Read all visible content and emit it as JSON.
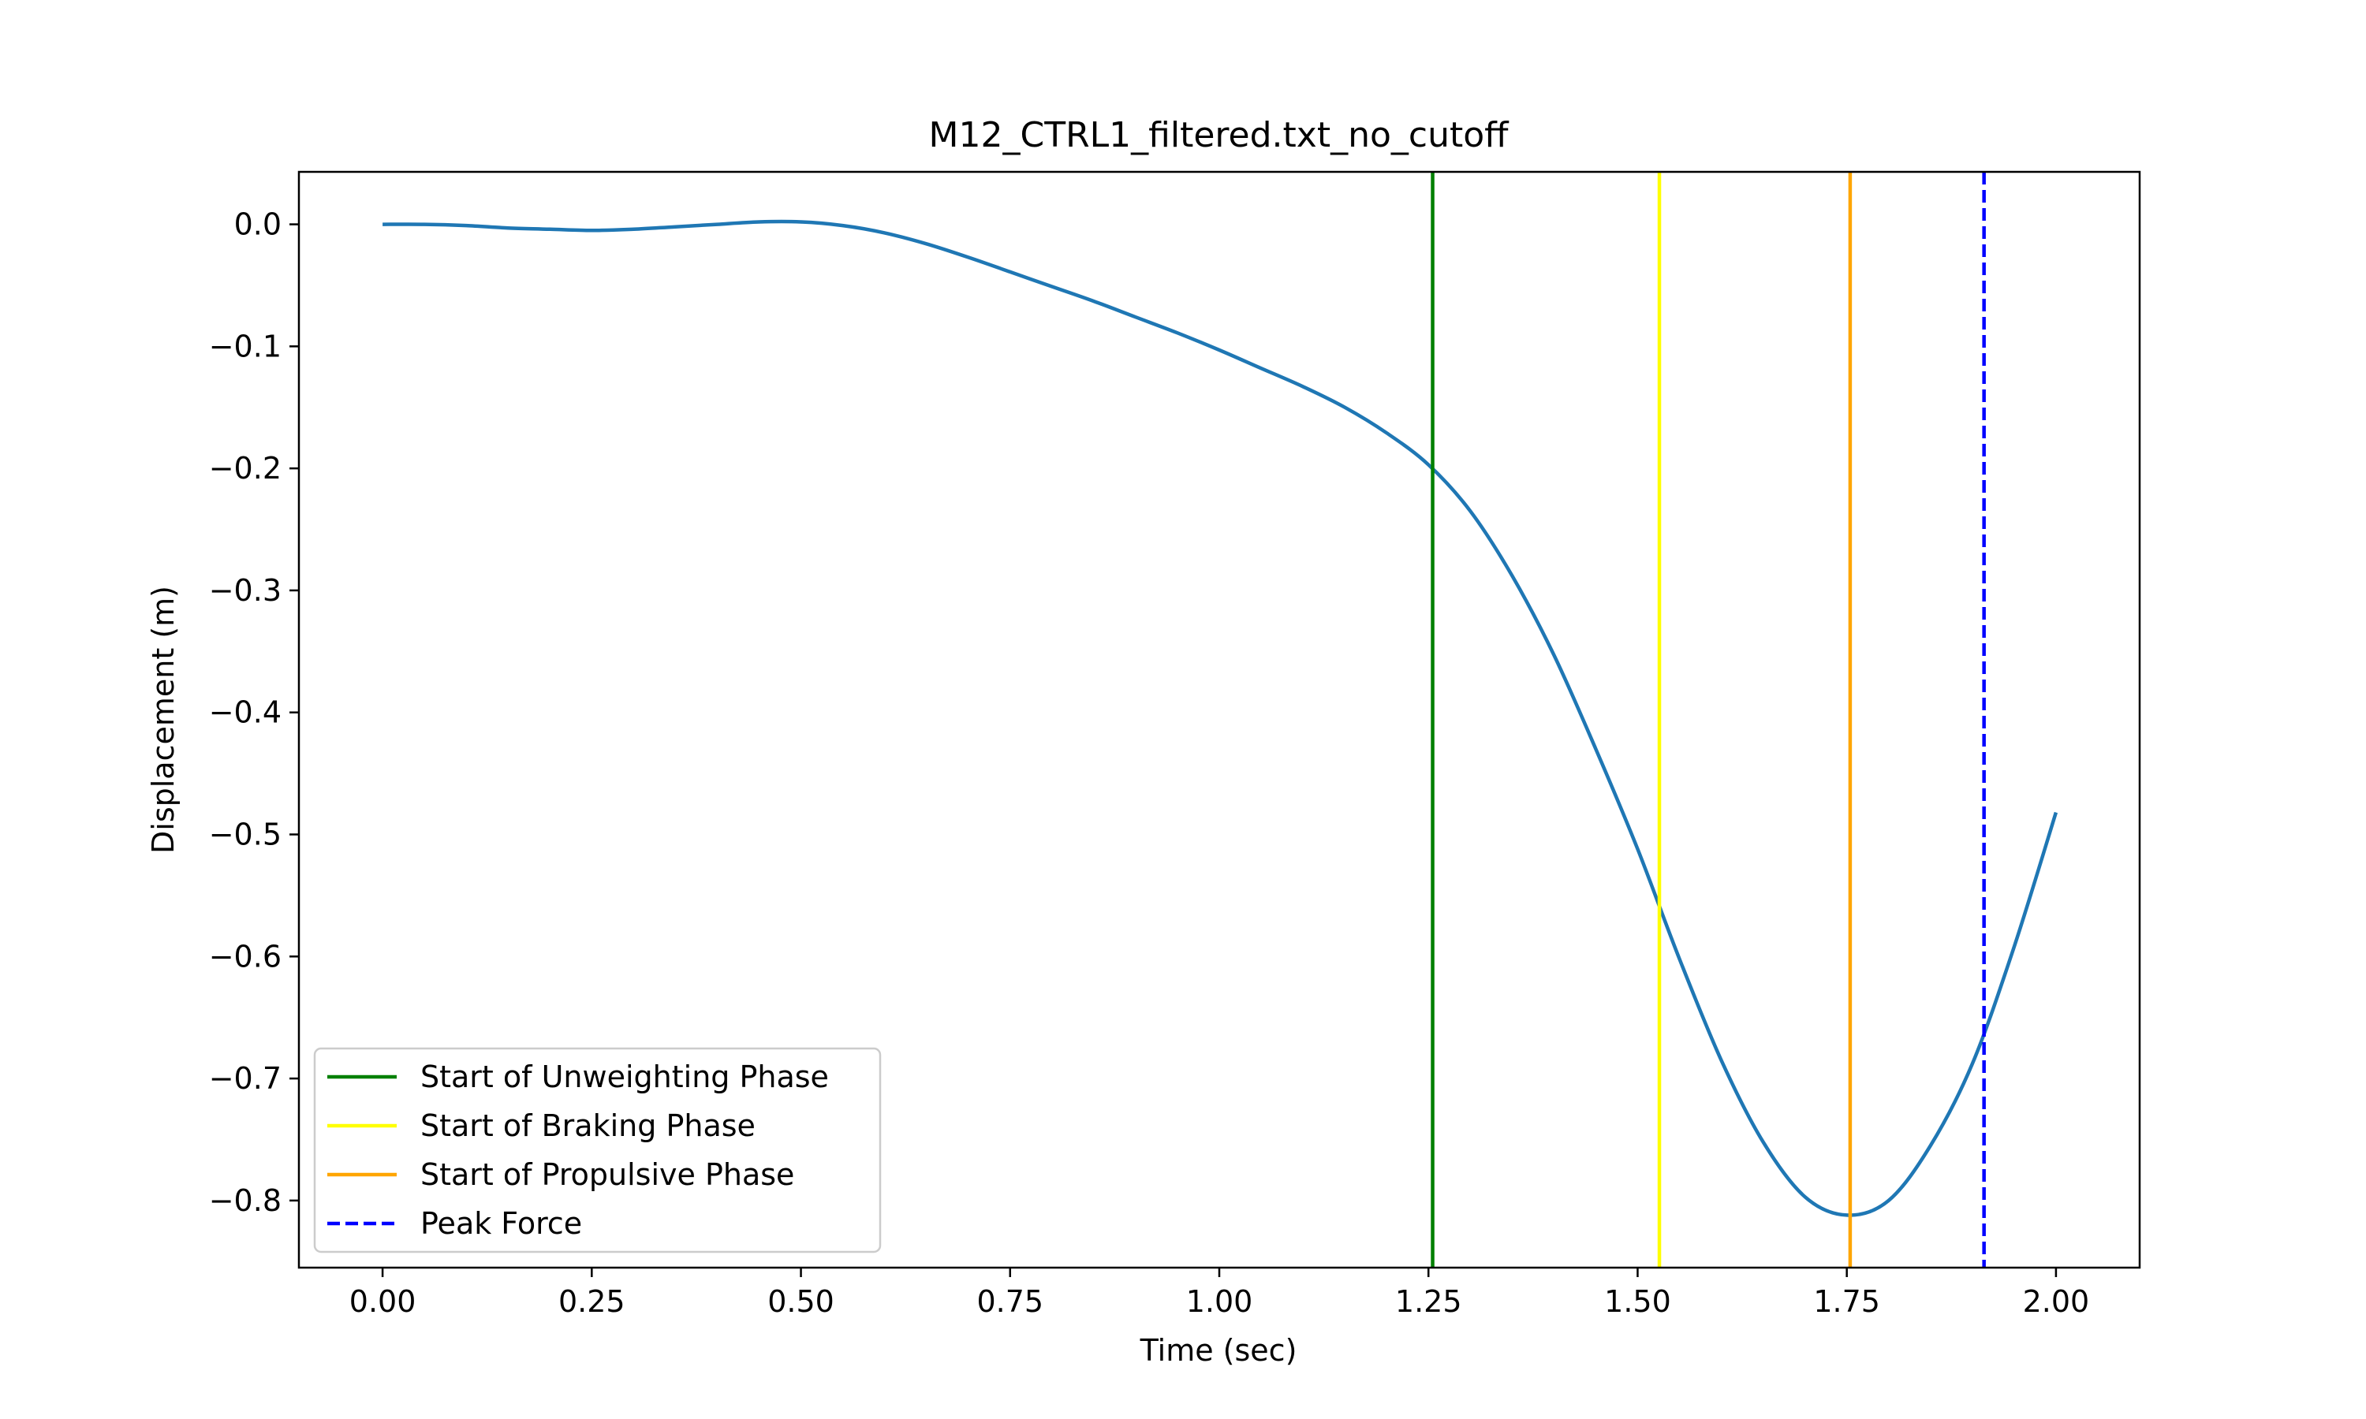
{
  "chart_data": {
    "type": "line",
    "title": "M12_CTRL1_filtered.txt_no_cutoff",
    "xlabel": "Time (sec)",
    "ylabel": "Displacement (m)",
    "xlim": [
      -0.1,
      2.1
    ],
    "ylim": [
      -0.855,
      0.043
    ],
    "xticks": [
      0.0,
      0.25,
      0.5,
      0.75,
      1.0,
      1.25,
      1.5,
      1.75,
      2.0
    ],
    "xtick_labels": [
      "0.00",
      "0.25",
      "0.50",
      "0.75",
      "1.00",
      "1.25",
      "1.50",
      "1.75",
      "2.00"
    ],
    "yticks": [
      0.0,
      -0.1,
      -0.2,
      -0.3,
      -0.4,
      -0.5,
      -0.6,
      -0.7,
      -0.8
    ],
    "ytick_labels": [
      "0.0",
      "−0.1",
      "−0.2",
      "−0.3",
      "−0.4",
      "−0.5",
      "−0.6",
      "−0.7",
      "−0.8"
    ],
    "grid": false,
    "legend_position": "lower-left",
    "series": [
      {
        "color": "#1f77b4",
        "x": [
          0.0,
          0.05,
          0.1,
          0.15,
          0.2,
          0.25,
          0.3,
          0.35,
          0.4,
          0.45,
          0.5,
          0.55,
          0.6,
          0.65,
          0.7,
          0.75,
          0.8,
          0.85,
          0.9,
          0.95,
          1.0,
          1.05,
          1.1,
          1.15,
          1.2,
          1.25,
          1.3,
          1.35,
          1.4,
          1.45,
          1.5,
          1.55,
          1.6,
          1.65,
          1.7,
          1.75,
          1.8,
          1.85,
          1.9,
          1.95,
          2.0
        ],
        "y": [
          0.0,
          0.0,
          -0.001,
          -0.003,
          -0.004,
          -0.005,
          -0.004,
          -0.002,
          0.0,
          0.002,
          0.002,
          -0.001,
          -0.007,
          -0.016,
          -0.027,
          -0.039,
          -0.051,
          -0.063,
          -0.076,
          -0.089,
          -0.103,
          -0.118,
          -0.133,
          -0.15,
          -0.171,
          -0.197,
          -0.235,
          -0.288,
          -0.353,
          -0.43,
          -0.512,
          -0.602,
          -0.685,
          -0.752,
          -0.797,
          -0.812,
          -0.8,
          -0.755,
          -0.688,
          -0.592,
          -0.482
        ]
      }
    ],
    "vlines": [
      {
        "label": "Start of Unweighting Phase",
        "x": 1.255,
        "color": "#008000",
        "style": "solid"
      },
      {
        "label": "Start of Braking Phase",
        "x": 1.526,
        "color": "#ffff00",
        "style": "solid"
      },
      {
        "label": "Start of Propulsive Phase",
        "x": 1.754,
        "color": "#ffa500",
        "style": "solid"
      },
      {
        "label": "Peak Force",
        "x": 1.914,
        "color": "#0000ff",
        "style": "dashed"
      }
    ]
  }
}
